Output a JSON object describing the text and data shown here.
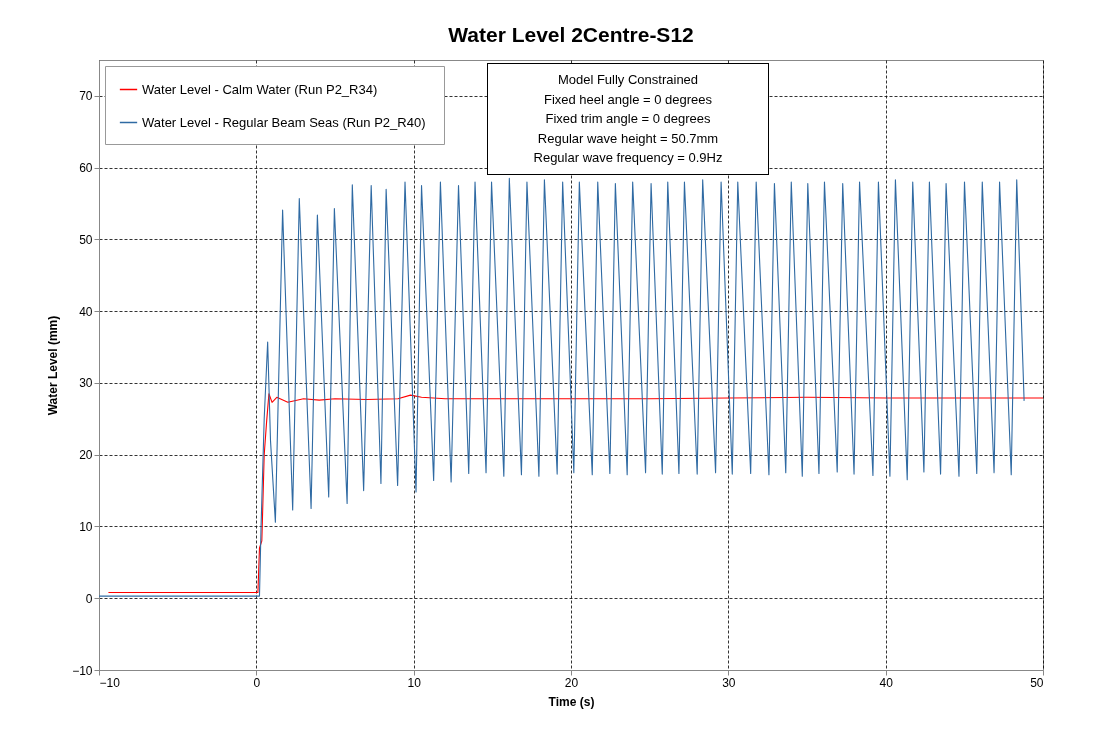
{
  "chart_data": {
    "type": "line",
    "title": "Water Level   2Centre-S12",
    "xlabel": "Time  (s)",
    "ylabel": "Water Level  (mm)",
    "xlim": [
      -10,
      50
    ],
    "xticks": [
      -10,
      0,
      10,
      20,
      30,
      40,
      50
    ],
    "ylim": [
      -10,
      75
    ],
    "yticks": [
      -10,
      0,
      10,
      20,
      30,
      40,
      50,
      60,
      70
    ],
    "grid": true,
    "legend": "top left",
    "marker": "none",
    "line_style": "solid",
    "annotations": [
      "Model Fully Constrained",
      "Fixed heel angle = 0 degrees",
      "Fixed trim angle = 0 degrees",
      "Regular wave height = 50.7mm",
      "Regular wave frequency = 0.9Hz"
    ],
    "series": [
      {
        "name": "Water Level - Calm Water  (Run P2_R34)",
        "color": "#ff0000",
        "x": [
          -9.4,
          0.1,
          0.2,
          0.35,
          0.5,
          0.65,
          0.8,
          1.0,
          1.3,
          2,
          3,
          4,
          5,
          7,
          9,
          9.8,
          10.5,
          12,
          15,
          20,
          25,
          30,
          35,
          40,
          45,
          50
        ],
        "values": [
          0.8,
          0.8,
          7,
          8,
          20,
          24.5,
          28.5,
          27.3,
          28,
          27.3,
          27.8,
          27.6,
          27.8,
          27.7,
          27.8,
          28.3,
          28,
          27.8,
          27.8,
          27.8,
          27.8,
          27.9,
          28,
          27.9,
          27.9,
          27.9
        ]
      },
      {
        "name": "Water Level - Regular Beam Seas  (Run P2_R40)",
        "color": "#2f6aa3",
        "x": [
          -10,
          0.2,
          0.3,
          0.5,
          0.72,
          0.9,
          1.21,
          1.67,
          2.31,
          2.73,
          3.48,
          3.88,
          4.6,
          4.96,
          5.77,
          6.1,
          6.82,
          7.3,
          7.92,
          8.25,
          8.98,
          9.45,
          10.15,
          10.5,
          11.27,
          11.7,
          12.38,
          12.85,
          13.5,
          13.9,
          14.6,
          14.95,
          15.73,
          16.08,
          16.85,
          17.2,
          17.96,
          18.31,
          19.12,
          19.47,
          20.18,
          20.53,
          21.35,
          21.7,
          22.47,
          22.82,
          23.57,
          23.92,
          24.74,
          25.09,
          25.8,
          26.15,
          26.86,
          27.21,
          28.02,
          28.37,
          29.19,
          29.54,
          30.25,
          30.6,
          31.42,
          31.77,
          32.58,
          32.93,
          33.65,
          34.0,
          34.7,
          35.05,
          35.76,
          36.11,
          36.92,
          37.27,
          37.99,
          38.34,
          39.19,
          39.54,
          40.27,
          40.62,
          41.37,
          41.72,
          42.43,
          42.78,
          43.49,
          43.84,
          44.66,
          45.01,
          45.79,
          46.14,
          46.89,
          47.24,
          47.98,
          48.33,
          48.8
        ],
        "values": [
          0.3,
          0.3,
          10,
          25,
          35.7,
          22,
          10.6,
          54.1,
          12.3,
          55.7,
          12.5,
          53.4,
          14.1,
          54.3,
          13.2,
          57.6,
          15,
          57.5,
          16,
          57,
          15.7,
          58,
          14.8,
          57.5,
          16.4,
          58,
          16.2,
          57.5,
          17.4,
          58,
          17.5,
          58,
          17,
          58.5,
          17.2,
          58,
          17,
          58.3,
          17.3,
          58,
          17.5,
          58,
          17.2,
          58,
          17.4,
          57.8,
          17.2,
          58,
          17.5,
          57.8,
          17.3,
          58,
          17.4,
          58,
          17.3,
          58.3,
          17.5,
          58,
          17.3,
          58,
          17.4,
          58,
          17.2,
          57.8,
          17.5,
          58,
          17,
          57.8,
          17.4,
          58,
          17.6,
          57.8,
          17.3,
          58,
          17.1,
          58,
          17,
          58.3,
          16.5,
          58,
          17.6,
          58,
          17.3,
          57.8,
          17,
          58,
          17.4,
          58,
          17.5,
          58,
          17.2,
          58.3,
          27.5
        ]
      }
    ]
  }
}
